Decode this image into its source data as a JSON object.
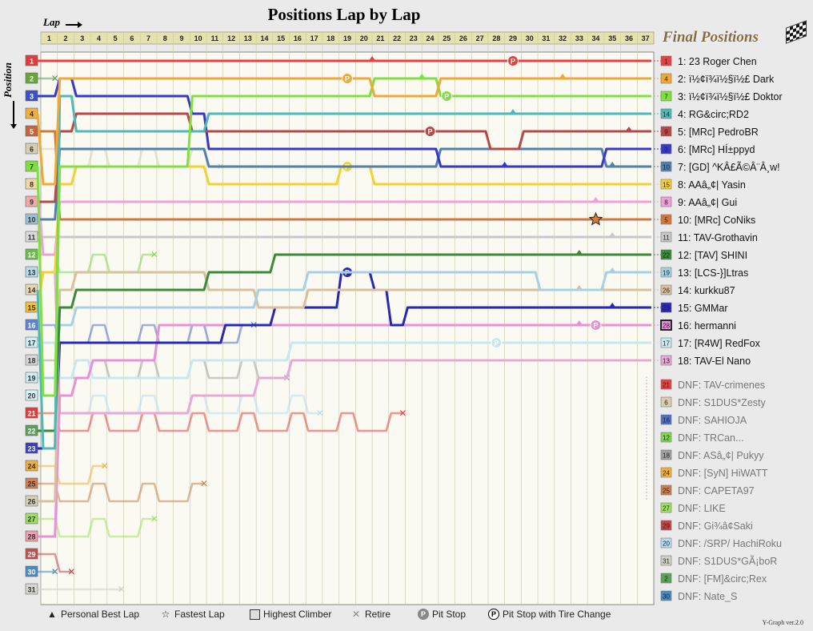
{
  "title": "Positions Lap by Lap",
  "lap_axis_label": "Lap",
  "position_axis_label": "Position",
  "final_positions_title": "Final Positions",
  "version": "Y-Graph ver.2.0",
  "legend": {
    "personal_best": "Personal Best Lap",
    "fastest_lap": "Fastest Lap",
    "highest_climber": "Highest Climber",
    "retire": "Retire",
    "pit_stop": "Pit Stop",
    "pit_stop_tire": "Pit Stop with Tire Change"
  },
  "chart_data": {
    "type": "line",
    "title": "Positions Lap by Lap",
    "xlabel": "Lap",
    "ylabel": "Position",
    "laps": 37,
    "x_ticks": [
      1,
      2,
      3,
      4,
      5,
      6,
      7,
      8,
      9,
      10,
      11,
      12,
      13,
      14,
      15,
      16,
      17,
      18,
      19,
      20,
      21,
      22,
      23,
      24,
      25,
      26,
      27,
      28,
      29,
      30,
      31,
      32,
      33,
      34,
      35,
      36,
      37
    ],
    "positions": 31,
    "y_ticks": [
      1,
      2,
      3,
      4,
      5,
      6,
      7,
      8,
      9,
      10,
      11,
      12,
      13,
      14,
      15,
      16,
      17,
      18,
      19,
      20,
      21,
      22,
      23,
      24,
      25,
      26,
      27,
      28,
      29,
      30,
      31
    ],
    "grid_colors": [
      "#e03c3c",
      "#66a838",
      "#3c4fc4",
      "#f0b03c",
      "#c8643c",
      "#d8cfb0",
      "#7ee040",
      "#f0d8a0",
      "#f0a8a8",
      "#a0c0d8",
      "#dcdcdc",
      "#6cbc4c",
      "#b8dcec",
      "#ead8b4",
      "#f5c030",
      "#6080d8",
      "#cfeef6",
      "#d8d8d8",
      "#cfeef6",
      "#d8f0f8",
      "#e83838",
      "#5ca058",
      "#3a3fb8",
      "#f0b040",
      "#d08050",
      "#d8d0b8",
      "#a0e060",
      "#f0a0b0",
      "#c05050",
      "#4a8ac0",
      "#d8d8d0"
    ],
    "finishers": [
      {
        "pos": 1,
        "grid": 1,
        "name": "1: 23 Roger Chen",
        "color": "#e84040",
        "finish": 1,
        "path": [
          1,
          1,
          1,
          1,
          1,
          1,
          1,
          1,
          1,
          1,
          1,
          1,
          1,
          1,
          1,
          1,
          1,
          1,
          1,
          1,
          1,
          1,
          1,
          1,
          1,
          1,
          1,
          1,
          1,
          1,
          1,
          1,
          1,
          1,
          1,
          1,
          1
        ],
        "marks": [
          {
            "lap": 20.5,
            "type": "pb"
          },
          {
            "lap": 29,
            "type": "pit"
          }
        ]
      },
      {
        "pos": 2,
        "grid": 4,
        "name": "2: ï½¢ï¾ï½§ï½£ Dark",
        "color": "#f0a838",
        "finish": 2,
        "path": [
          8,
          2,
          2,
          2,
          2,
          2,
          2,
          2,
          2,
          2,
          2,
          2,
          2,
          2,
          2,
          2,
          2,
          2,
          2,
          2,
          3,
          3,
          3,
          3,
          2,
          2,
          2,
          2,
          2,
          2,
          2,
          2,
          2,
          2,
          2,
          2,
          2
        ],
        "marks": [
          {
            "lap": 19,
            "type": "pit"
          },
          {
            "lap": 32,
            "type": "pb"
          }
        ]
      },
      {
        "pos": 3,
        "grid": 7,
        "name": "3: ï½¢ï¾ï½§ï½£ Doktor",
        "color": "#80e040",
        "finish": 3,
        "path": [
          20,
          7,
          7,
          7,
          7,
          7,
          7,
          7,
          7,
          3,
          3,
          3,
          3,
          3,
          3,
          3,
          3,
          3,
          3,
          3,
          2,
          2,
          2,
          2,
          3,
          3,
          3,
          3,
          3,
          3,
          3,
          3,
          3,
          3,
          3,
          3,
          3
        ],
        "marks": [
          {
            "lap": 23.5,
            "type": "pb"
          },
          {
            "lap": 25,
            "type": "pit"
          }
        ]
      },
      {
        "pos": 4,
        "grid": 14,
        "name": "4: RG&circ;RD2",
        "color": "#4fb8b8",
        "finish": 4,
        "path": [
          23,
          3,
          5,
          5,
          5,
          5,
          5,
          5,
          5,
          5,
          4,
          4,
          4,
          4,
          4,
          4,
          4,
          4,
          4,
          4,
          4,
          4,
          4,
          4,
          4,
          4,
          4,
          4,
          4,
          4,
          4,
          4,
          4,
          4,
          4,
          4,
          4
        ],
        "marks": [
          {
            "lap": 29,
            "type": "pb"
          }
        ]
      },
      {
        "pos": 5,
        "grid": 9,
        "name": "5: [MRc] PedroBR",
        "color": "#b84848",
        "finish": 5,
        "path": [
          9,
          5,
          4,
          4,
          4,
          4,
          4,
          4,
          4,
          5,
          5,
          5,
          5,
          5,
          5,
          5,
          5,
          5,
          5,
          5,
          5,
          5,
          5,
          5,
          5,
          5,
          5,
          6,
          6,
          5,
          5,
          5,
          5,
          5,
          5,
          5,
          5
        ],
        "marks": [
          {
            "lap": 24,
            "type": "pit"
          },
          {
            "lap": 36,
            "type": "pb"
          }
        ]
      },
      {
        "pos": 6,
        "grid": 3,
        "name": "6: [MRc] HÍ±ppyd",
        "color": "#3838c8",
        "finish": 6,
        "path": [
          3,
          2,
          3,
          3,
          3,
          3,
          3,
          3,
          3,
          4,
          6,
          6,
          6,
          6,
          6,
          6,
          6,
          6,
          6,
          6,
          6,
          6,
          6,
          6,
          7,
          7,
          7,
          7,
          7,
          7,
          7,
          7,
          7,
          7,
          6,
          6,
          6
        ],
        "marks": [
          {
            "lap": 28.5,
            "type": "pb"
          }
        ]
      },
      {
        "pos": 7,
        "grid": 10,
        "name": "7: [GD] ^KÂ£Ã©Â¨Â¸w!",
        "color": "#5080b0",
        "finish": 7,
        "path": [
          10,
          6,
          6,
          6,
          6,
          6,
          6,
          6,
          6,
          6,
          7,
          7,
          7,
          7,
          7,
          7,
          7,
          7,
          7,
          7,
          7,
          7,
          7,
          7,
          6,
          6,
          6,
          6,
          6,
          6,
          6,
          6,
          6,
          6,
          7,
          7,
          7
        ],
        "marks": [
          {
            "lap": 35,
            "type": "pb"
          }
        ]
      },
      {
        "pos": 8,
        "grid": 15,
        "name": "8: AAâ„¢| Yasin",
        "color": "#f5d030",
        "finish": 8,
        "path": [
          13,
          8,
          7,
          7,
          7,
          7,
          7,
          7,
          7,
          7,
          8,
          8,
          8,
          8,
          8,
          8,
          8,
          8,
          7,
          7,
          8,
          8,
          8,
          8,
          8,
          8,
          8,
          8,
          8,
          8,
          8,
          8,
          8,
          8,
          8,
          8,
          8
        ],
        "marks": [
          {
            "lap": 19,
            "type": "pit"
          }
        ]
      },
      {
        "pos": 9,
        "grid": 8,
        "name": "9: AAâ„¢| Gui",
        "color": "#f0a0d8",
        "finish": 9,
        "path": [
          12,
          9,
          9,
          9,
          9,
          9,
          9,
          9,
          9,
          9,
          9,
          9,
          9,
          9,
          9,
          9,
          9,
          9,
          9,
          9,
          9,
          9,
          9,
          9,
          9,
          9,
          9,
          9,
          9,
          9,
          9,
          9,
          9,
          9,
          9,
          9,
          9
        ],
        "marks": [
          {
            "lap": 34,
            "type": "pb"
          }
        ]
      },
      {
        "pos": 10,
        "grid": 5,
        "name": "10: [MRc] CoNiks",
        "color": "#d07840",
        "finish": 10,
        "path": [
          5,
          10,
          10,
          10,
          10,
          10,
          10,
          10,
          10,
          10,
          10,
          10,
          10,
          10,
          10,
          10,
          10,
          10,
          10,
          10,
          10,
          10,
          10,
          10,
          10,
          10,
          10,
          10,
          10,
          10,
          10,
          10,
          10,
          10,
          10,
          10,
          10
        ],
        "marks": [
          {
            "lap": 34,
            "type": "fl"
          }
        ]
      },
      {
        "pos": 11,
        "grid": 11,
        "name": "11: TAV-Grothavin",
        "color": "#c8c8c8",
        "finish": 11,
        "path": [
          11,
          11,
          11,
          11,
          11,
          11,
          11,
          11,
          11,
          11,
          11,
          11,
          11,
          11,
          11,
          11,
          11,
          11,
          11,
          11,
          11,
          11,
          11,
          11,
          11,
          11,
          11,
          11,
          11,
          11,
          11,
          11,
          11,
          11,
          11,
          11,
          11
        ],
        "marks": [
          {
            "lap": 35,
            "type": "pb"
          }
        ]
      },
      {
        "pos": 12,
        "grid": 22,
        "name": "12: [TAV] SHINI",
        "color": "#3a8a3a",
        "finish": 12,
        "path": [
          22,
          15,
          14,
          14,
          14,
          14,
          14,
          14,
          14,
          14,
          13,
          13,
          13,
          13,
          12,
          12,
          12,
          12,
          12,
          12,
          12,
          12,
          12,
          12,
          12,
          12,
          12,
          12,
          12,
          12,
          12,
          12,
          12,
          12,
          12,
          12,
          12
        ],
        "marks": [
          {
            "lap": 33,
            "type": "pb"
          }
        ]
      },
      {
        "pos": 13,
        "grid": 19,
        "name": "13: [LCS-}]Ltras",
        "color": "#a8d0e4",
        "finish": 13,
        "path": [
          19,
          16,
          15,
          15,
          15,
          15,
          15,
          15,
          15,
          15,
          15,
          15,
          15,
          14,
          14,
          14,
          13,
          13,
          13,
          13,
          13,
          13,
          13,
          13,
          13,
          13,
          13,
          13,
          13,
          13,
          14,
          14,
          14,
          14,
          13,
          13,
          13
        ],
        "marks": [
          {
            "lap": 35,
            "type": "pb"
          }
        ]
      },
      {
        "pos": 14,
        "grid": 26,
        "name": "14: kurkku87",
        "color": "#d8c0a0",
        "finish": 14,
        "path": [
          26,
          14,
          13,
          13,
          13,
          13,
          13,
          13,
          13,
          13,
          14,
          14,
          14,
          15,
          15,
          15,
          14,
          14,
          14,
          14,
          14,
          14,
          14,
          14,
          14,
          14,
          14,
          14,
          14,
          14,
          14,
          14,
          14,
          14,
          14,
          14,
          14
        ],
        "marks": [
          {
            "lap": 33,
            "type": "pb"
          }
        ]
      },
      {
        "pos": 15,
        "grid": 23,
        "name": "15: GMMar",
        "color": "#2828b8",
        "finish": 15,
        "path": [
          23,
          17,
          17,
          17,
          17,
          17,
          17,
          17,
          17,
          17,
          17,
          16,
          16,
          16,
          15,
          15,
          15,
          15,
          13,
          13,
          14,
          16,
          15,
          15,
          15,
          15,
          15,
          15,
          15,
          15,
          15,
          15,
          15,
          15,
          15,
          15,
          15
        ],
        "marks": [
          {
            "lap": 19,
            "type": "pit"
          },
          {
            "lap": 35,
            "type": "pb"
          }
        ]
      },
      {
        "pos": 16,
        "grid": 28,
        "name": "16: hermanni",
        "color": "#e890d8",
        "finish": 16,
        "path": [
          28,
          20,
          19,
          18,
          18,
          18,
          18,
          16,
          16,
          16,
          16,
          16,
          16,
          16,
          16,
          16,
          16,
          16,
          16,
          16,
          16,
          16,
          16,
          16,
          16,
          16,
          16,
          16,
          16,
          16,
          16,
          16,
          16,
          16,
          16,
          16,
          16
        ],
        "marks": [
          {
            "lap": 33,
            "type": "pb"
          },
          {
            "lap": 34,
            "type": "pit"
          }
        ]
      },
      {
        "pos": 17,
        "grid": 17,
        "name": "17: [R4W] RedFox",
        "color": "#c8e8f0",
        "finish": 17,
        "path": [
          17,
          19,
          18,
          19,
          19,
          19,
          19,
          19,
          19,
          18,
          18,
          18,
          18,
          18,
          18,
          17,
          17,
          17,
          17,
          17,
          17,
          17,
          17,
          17,
          17,
          17,
          17,
          17,
          17,
          17,
          17,
          17,
          17,
          17,
          17,
          17,
          17
        ],
        "marks": [
          {
            "lap": 28,
            "type": "pit"
          }
        ]
      },
      {
        "pos": 18,
        "grid": 13,
        "name": "18: TAV-El Nano",
        "color": "#e8a8d8",
        "finish": 18,
        "path": [
          13,
          21,
          21,
          21,
          21,
          21,
          21,
          21,
          21,
          20,
          20,
          20,
          20,
          19,
          19,
          18,
          18,
          18,
          18,
          18,
          18,
          18,
          18,
          18,
          18,
          18,
          18,
          18,
          18,
          18,
          18,
          18,
          18,
          18,
          18,
          18,
          18
        ],
        "marks": []
      }
    ],
    "dnf": [
      {
        "name": "DNF: TAV-crimenes",
        "grid": 21,
        "color": "#e84040"
      },
      {
        "name": "DNF: S1DUS*Zesty",
        "grid": 6,
        "color": "#d8cfb0"
      },
      {
        "name": "DNF: SAHIOJA",
        "grid": 16,
        "color": "#5070c8"
      },
      {
        "name": "DNF: TRCan...",
        "grid": 12,
        "color": "#80d850"
      },
      {
        "name": "DNF: ASâ„¢| Pukyy",
        "grid": 18,
        "color": "#a0a0a0"
      },
      {
        "name": "DNF: [SyN] HiWATT",
        "grid": 24,
        "color": "#f0b040"
      },
      {
        "name": "DNF: CAPETA97",
        "grid": 25,
        "color": "#c88050"
      },
      {
        "name": "DNF: LIKE",
        "grid": 27,
        "color": "#a0e060"
      },
      {
        "name": "DNF: Gi¾â¢Saki",
        "grid": 29,
        "color": "#c04848"
      },
      {
        "name": "DNF: /SRP/ HachiRoku",
        "grid": 20,
        "color": "#b8dcf0"
      },
      {
        "name": "DNF: S1DUS*GÃ¡boR",
        "grid": 31,
        "color": "#d0d0c8"
      },
      {
        "name": "DNF: [FM]&circ;Rex",
        "grid": 2,
        "color": "#5ca058"
      },
      {
        "name": "DNF: Nate_S",
        "grid": 30,
        "color": "#4a8ac0"
      }
    ],
    "highest_climber_grid": 28
  }
}
